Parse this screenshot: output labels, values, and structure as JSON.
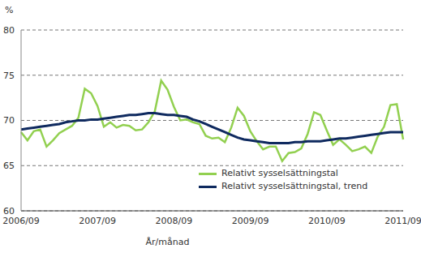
{
  "chart_data": {
    "type": "line",
    "y_label": "%",
    "x_label": "År/månad",
    "categories": [
      "2006/09",
      null,
      null,
      null,
      null,
      null,
      null,
      null,
      null,
      null,
      null,
      null,
      "2007/09",
      null,
      null,
      null,
      null,
      null,
      null,
      null,
      null,
      null,
      null,
      null,
      "2008/09",
      null,
      null,
      null,
      null,
      null,
      null,
      null,
      null,
      null,
      null,
      null,
      "2009/09",
      null,
      null,
      null,
      null,
      null,
      null,
      null,
      null,
      null,
      null,
      null,
      "2010/09",
      null,
      null,
      null,
      null,
      null,
      null,
      null,
      null,
      null,
      null,
      null,
      "2011/09"
    ],
    "ylim": [
      60,
      80
    ],
    "yticks": [
      60,
      65,
      70,
      75,
      80
    ],
    "grid": true,
    "legend": "lower right",
    "series": [
      {
        "name": "Relativt sysselsättningstal",
        "color": "#92d050",
        "values": [
          68.7,
          67.8,
          68.8,
          69.0,
          67.1,
          67.8,
          68.6,
          69.0,
          69.4,
          70.3,
          73.5,
          73.0,
          71.6,
          69.3,
          69.8,
          69.2,
          69.5,
          69.4,
          68.9,
          69.0,
          69.8,
          71.0,
          74.4,
          73.4,
          71.5,
          70.0,
          70.1,
          69.8,
          69.6,
          68.3,
          68.0,
          68.1,
          67.6,
          69.2,
          71.4,
          70.5,
          68.8,
          67.7,
          66.8,
          67.1,
          67.1,
          65.5,
          66.4,
          66.5,
          66.9,
          68.5,
          70.9,
          70.6,
          68.9,
          67.3,
          67.9,
          67.3,
          66.6,
          66.8,
          67.1,
          66.4,
          68.2,
          69.3,
          71.7,
          71.8,
          67.9
        ]
      },
      {
        "name": "Relativt sysselsättningstal, trend",
        "color": "#0f2a5f",
        "values": [
          69.0,
          69.1,
          69.2,
          69.3,
          69.4,
          69.5,
          69.6,
          69.8,
          69.9,
          70.0,
          70.0,
          70.1,
          70.1,
          70.2,
          70.3,
          70.4,
          70.5,
          70.6,
          70.6,
          70.7,
          70.8,
          70.8,
          70.7,
          70.6,
          70.6,
          70.5,
          70.4,
          70.1,
          69.9,
          69.6,
          69.3,
          69.0,
          68.7,
          68.4,
          68.1,
          67.9,
          67.8,
          67.7,
          67.6,
          67.5,
          67.5,
          67.5,
          67.5,
          67.6,
          67.6,
          67.7,
          67.7,
          67.7,
          67.8,
          67.9,
          68.0,
          68.0,
          68.1,
          68.2,
          68.3,
          68.4,
          68.5,
          68.6,
          68.7,
          68.7,
          68.7
        ]
      }
    ]
  }
}
